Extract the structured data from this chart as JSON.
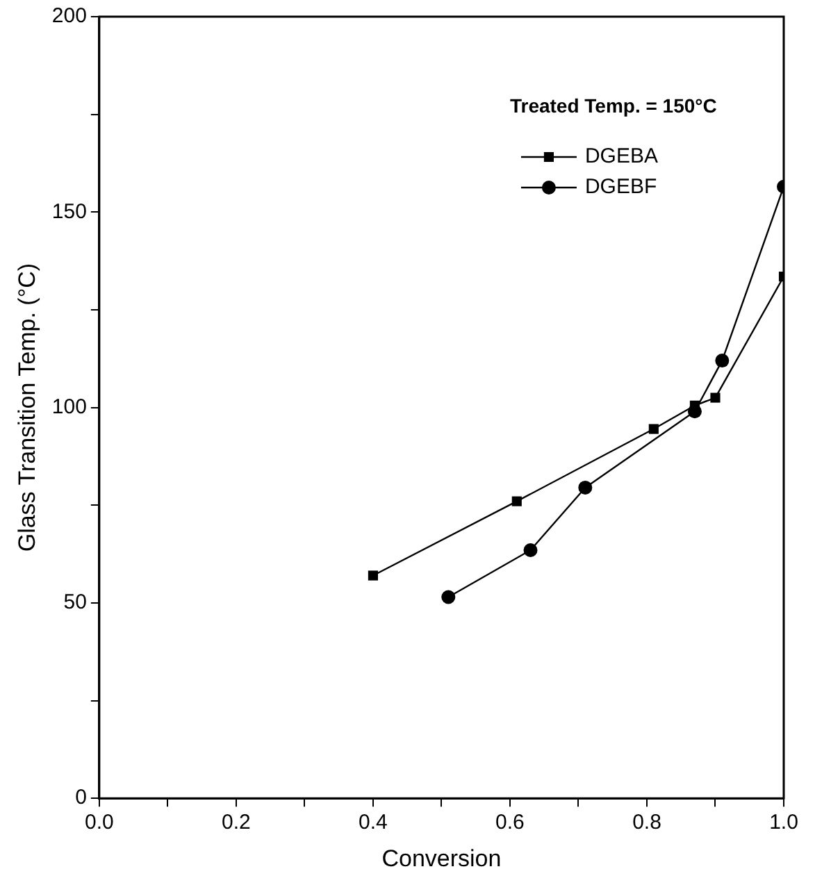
{
  "chart_data": {
    "type": "line",
    "xlabel": "Conversion",
    "ylabel": "Glass Transition Temp. (°C)",
    "annotations": [
      "Treated Temp. = 150°C"
    ],
    "xlim": [
      0,
      1
    ],
    "xticks": [
      {
        "value": 0,
        "label": "0.0"
      },
      {
        "value": 0.1,
        "label": null
      },
      {
        "value": 0.2,
        "label": "0.2"
      },
      {
        "value": 0.3,
        "label": null
      },
      {
        "value": 0.4,
        "label": "0.4"
      },
      {
        "value": 0.5,
        "label": null
      },
      {
        "value": 0.6,
        "label": "0.6"
      },
      {
        "value": 0.7,
        "label": null
      },
      {
        "value": 0.8,
        "label": "0.8"
      },
      {
        "value": 0.9,
        "label": null
      },
      {
        "value": 1,
        "label": "1.0"
      }
    ],
    "ylim": [
      0,
      200
    ],
    "yticks": [
      0,
      {
        "value": 25,
        "label": null
      },
      50,
      {
        "value": 75,
        "label": null
      },
      100,
      {
        "value": 125,
        "label": null
      },
      150,
      {
        "value": 175,
        "label": null
      },
      200
    ],
    "grid": false,
    "legend": "top right",
    "line_style": "solid",
    "series": [
      {
        "name": "DGEBA",
        "color": "#000000",
        "marker": "square",
        "x": [
          0.4,
          0.61,
          0.81,
          0.87,
          0.9,
          1.0
        ],
        "values": [
          57,
          76,
          94.5,
          100.5,
          102.5,
          133.5
        ]
      },
      {
        "name": "DGEBF",
        "color": "#000000",
        "marker": "circle",
        "x": [
          0.51,
          0.63,
          0.71,
          0.87,
          0.91,
          1.0
        ],
        "values": [
          51.5,
          63.5,
          79.5,
          99,
          112,
          156.5
        ]
      }
    ]
  }
}
